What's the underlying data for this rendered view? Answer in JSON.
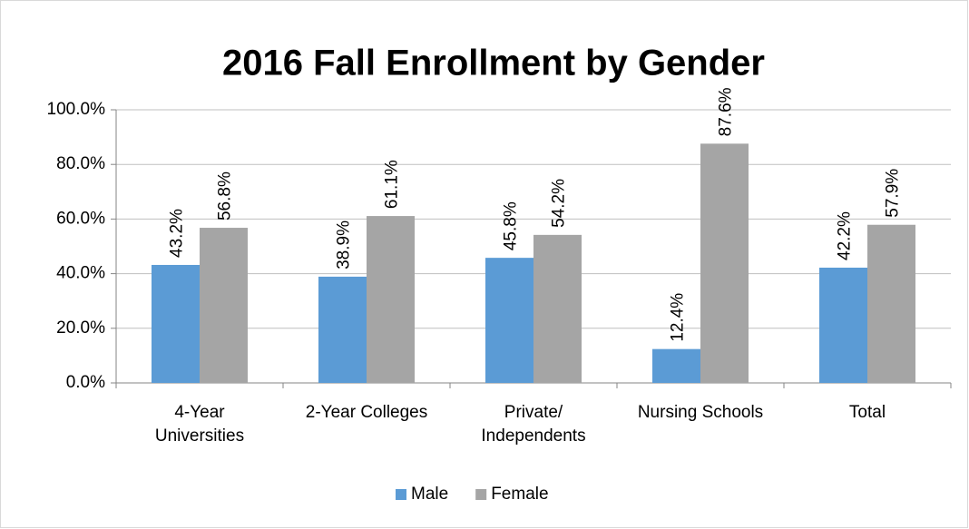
{
  "chart_data": {
    "type": "bar",
    "title": "2016 Fall Enrollment by Gender",
    "categories": [
      "4-Year\nUniversities",
      "2-Year Colleges",
      "Private/\nIndependents",
      "Nursing Schools",
      "Total"
    ],
    "series": [
      {
        "name": "Male",
        "color": "#5b9bd5",
        "values": [
          43.2,
          38.9,
          45.8,
          12.4,
          42.2
        ],
        "value_labels": [
          "43.2%",
          "38.9%",
          "45.8%",
          "12.4%",
          "42.2%"
        ]
      },
      {
        "name": "Female",
        "color": "#a5a5a5",
        "values": [
          56.8,
          61.1,
          54.2,
          87.6,
          57.9
        ],
        "value_labels": [
          "56.8%",
          "61.1%",
          "54.2%",
          "87.6%",
          "57.9%"
        ]
      }
    ],
    "ylim": [
      0,
      100
    ],
    "yticks": [
      {
        "value": 0,
        "label": "0.0%"
      },
      {
        "value": 20,
        "label": "20.0%"
      },
      {
        "value": 40,
        "label": "40.0%"
      },
      {
        "value": 60,
        "label": "60.0%"
      },
      {
        "value": 80,
        "label": "80.0%"
      },
      {
        "value": 100,
        "label": "100.0%"
      }
    ],
    "grid": true,
    "legend": "bottom"
  }
}
